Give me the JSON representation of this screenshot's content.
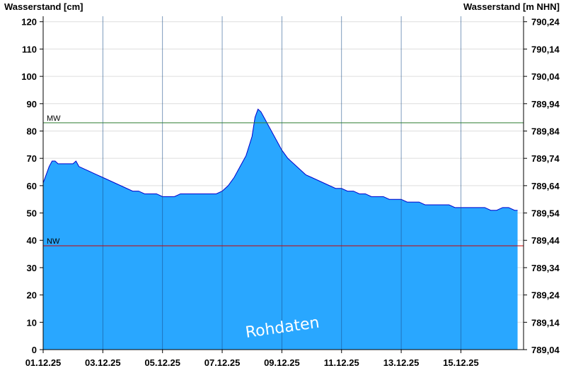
{
  "chart_data": {
    "type": "area",
    "ylabel_left": "Wasserstand [cm]",
    "ylabel_right": "Wasserstand [m NHN]",
    "ylim_left": [
      0,
      122
    ],
    "ylim_right": [
      789.04,
      790.26
    ],
    "yticks_left": [
      0,
      10,
      20,
      30,
      40,
      50,
      60,
      70,
      80,
      90,
      100,
      110,
      120
    ],
    "ytick_labels_left": [
      "0",
      "10",
      "20",
      "30",
      "40",
      "50",
      "60",
      "70",
      "80",
      "90",
      "100",
      "110",
      "120"
    ],
    "ytick_labels_right": [
      "789,04",
      "789,14",
      "789,24",
      "789,34",
      "789,44",
      "789,54",
      "789,64",
      "789,74",
      "789,84",
      "789,94",
      "790,04",
      "790,14",
      "790,24"
    ],
    "xticks": [
      0,
      2,
      4,
      6,
      8,
      10,
      12,
      14
    ],
    "xtick_labels": [
      "01.12.25",
      "03.12.25",
      "05.12.25",
      "07.12.25",
      "09.12.25",
      "11.12.25",
      "13.12.25",
      "15.12.25"
    ],
    "xlim": [
      0,
      16.1
    ],
    "grid": true,
    "fill_color": "#29a7ff",
    "line_color": "#0000cc",
    "reference_lines": [
      {
        "label": "MW",
        "value": 83,
        "color": "#2e7d32"
      },
      {
        "label": "NW",
        "value": 38,
        "color": "#cc0000"
      }
    ],
    "watermark": "Rohdaten",
    "series": [
      {
        "x": [
          0,
          0.1,
          0.2,
          0.3,
          0.4,
          0.5,
          0.6,
          0.8,
          1.0,
          1.1,
          1.2,
          1.4,
          1.6,
          1.8,
          2.0,
          2.2,
          2.4,
          2.6,
          2.8,
          3.0,
          3.2,
          3.4,
          3.6,
          3.8,
          4.0,
          4.2,
          4.4,
          4.6,
          4.8,
          5.0,
          5.2,
          5.4,
          5.6,
          5.8,
          6.0,
          6.2,
          6.4,
          6.6,
          6.8,
          7.0,
          7.1,
          7.2,
          7.3,
          7.4,
          7.5,
          7.6,
          7.8,
          8.0,
          8.2,
          8.4,
          8.6,
          8.8,
          9.0,
          9.2,
          9.4,
          9.6,
          9.8,
          10.0,
          10.2,
          10.4,
          10.6,
          10.8,
          11.0,
          11.2,
          11.4,
          11.6,
          11.8,
          12.0,
          12.2,
          12.4,
          12.6,
          12.8,
          12.9,
          13.0,
          13.2,
          13.4,
          13.6,
          13.8,
          14.0,
          14.2,
          14.4,
          14.6,
          14.8,
          15.0,
          15.2,
          15.4,
          15.6,
          15.8,
          15.9
        ],
        "values": [
          61,
          64,
          67,
          69,
          69,
          68,
          68,
          68,
          68,
          69,
          67,
          66,
          65,
          64,
          63,
          62,
          61,
          60,
          59,
          58,
          58,
          57,
          57,
          57,
          56,
          56,
          56,
          57,
          57,
          57,
          57,
          57,
          57,
          57,
          58,
          60,
          63,
          67,
          71,
          78,
          85,
          88,
          87,
          85,
          83,
          81,
          77,
          73,
          70,
          68,
          66,
          64,
          63,
          62,
          61,
          60,
          59,
          59,
          58,
          58,
          57,
          57,
          56,
          56,
          56,
          55,
          55,
          55,
          54,
          54,
          54,
          53,
          53,
          53,
          53,
          53,
          53,
          52,
          52,
          52,
          52,
          52,
          52,
          51,
          51,
          52,
          52,
          51,
          51
        ]
      }
    ]
  }
}
